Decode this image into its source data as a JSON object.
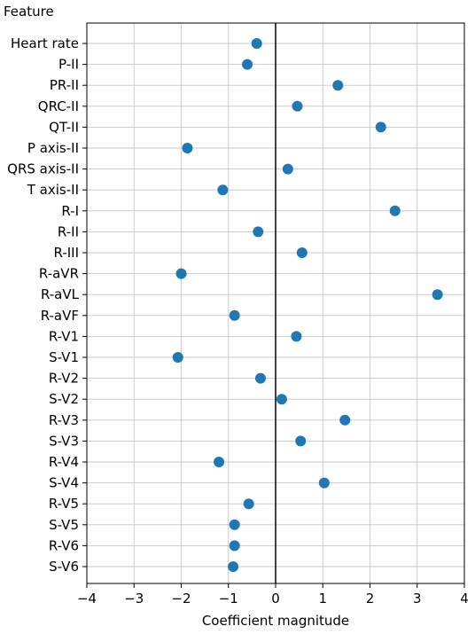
{
  "chart_data": {
    "type": "scatter",
    "ylabel": "Feature",
    "xlabel": "Coefficient magnitude",
    "xlim": [
      -4,
      4
    ],
    "x_ticks": [
      -4,
      -3,
      -2,
      -1,
      0,
      1,
      2,
      3,
      4
    ],
    "x_tick_labels": [
      "−4",
      "−3",
      "−2",
      "−1",
      "0",
      "1",
      "2",
      "3",
      "4"
    ],
    "grid": true,
    "zero_line": true,
    "marker_color": "#1f77b4",
    "categories": [
      "Heart rate",
      "P-II",
      "PR-II",
      "QRC-II",
      "QT-II",
      "P axis-II",
      "QRS axis-II",
      "T axis-II",
      "R-I",
      "R-II",
      "R-III",
      "R-aVR",
      "R-aVL",
      "R-aVF",
      "R-V1",
      "S-V1",
      "R-V2",
      "S-V2",
      "R-V3",
      "S-V3",
      "R-V4",
      "S-V4",
      "R-V5",
      "S-V5",
      "R-V6",
      "S-V6"
    ],
    "values": [
      -0.4,
      -0.6,
      1.32,
      0.46,
      2.23,
      -1.87,
      0.26,
      -1.12,
      2.53,
      -0.37,
      0.56,
      -2.0,
      3.43,
      -0.87,
      0.44,
      -2.07,
      -0.32,
      0.13,
      1.47,
      0.53,
      -1.2,
      1.03,
      -0.57,
      -0.87,
      -0.87,
      -0.9
    ]
  }
}
